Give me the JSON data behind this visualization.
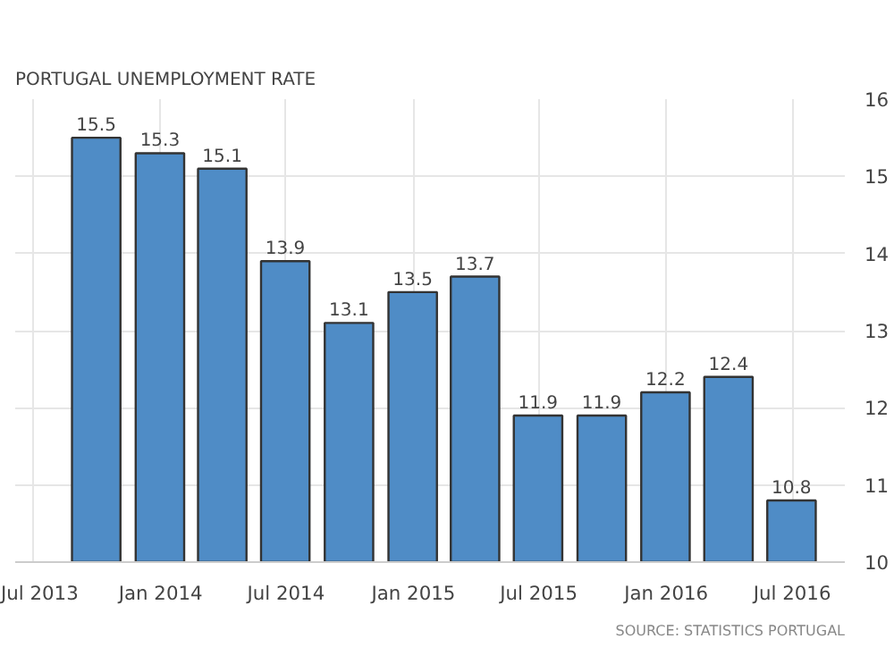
{
  "chart_data": {
    "type": "bar",
    "title": "PORTUGAL UNEMPLOYMENT RATE",
    "x": [
      "2013-09-30",
      "2013-12-31",
      "2014-03-31",
      "2014-06-30",
      "2014-09-30",
      "2014-12-31",
      "2015-03-31",
      "2015-06-30",
      "2015-09-30",
      "2015-12-31",
      "2016-03-31",
      "2016-06-30"
    ],
    "values": [
      15.5,
      15.3,
      15.1,
      13.9,
      13.1,
      13.5,
      13.7,
      11.9,
      11.9,
      12.2,
      12.4,
      10.8
    ],
    "color": "#4f8cc6",
    "data_labels": true,
    "xlim": [
      "2013-06-05",
      "2016-09-15"
    ],
    "xticks": [
      {
        "value": "2013-07-01",
        "label": "Jul 2013"
      },
      {
        "value": "2014-01-01",
        "label": "Jan 2014"
      },
      {
        "value": "2014-07-01",
        "label": "Jul 2014"
      },
      {
        "value": "2015-01-01",
        "label": "Jan 2015"
      },
      {
        "value": "2015-07-01",
        "label": "Jul 2015"
      },
      {
        "value": "2016-01-01",
        "label": "Jan 2016"
      },
      {
        "value": "2016-07-01",
        "label": "Jul 2016"
      }
    ],
    "ylim": [
      10,
      16
    ],
    "yticks": [
      10,
      11,
      12,
      13,
      14,
      15,
      16
    ],
    "grid": true,
    "annotations": [
      "SOURCE: STATISTICS PORTUGAL"
    ]
  }
}
